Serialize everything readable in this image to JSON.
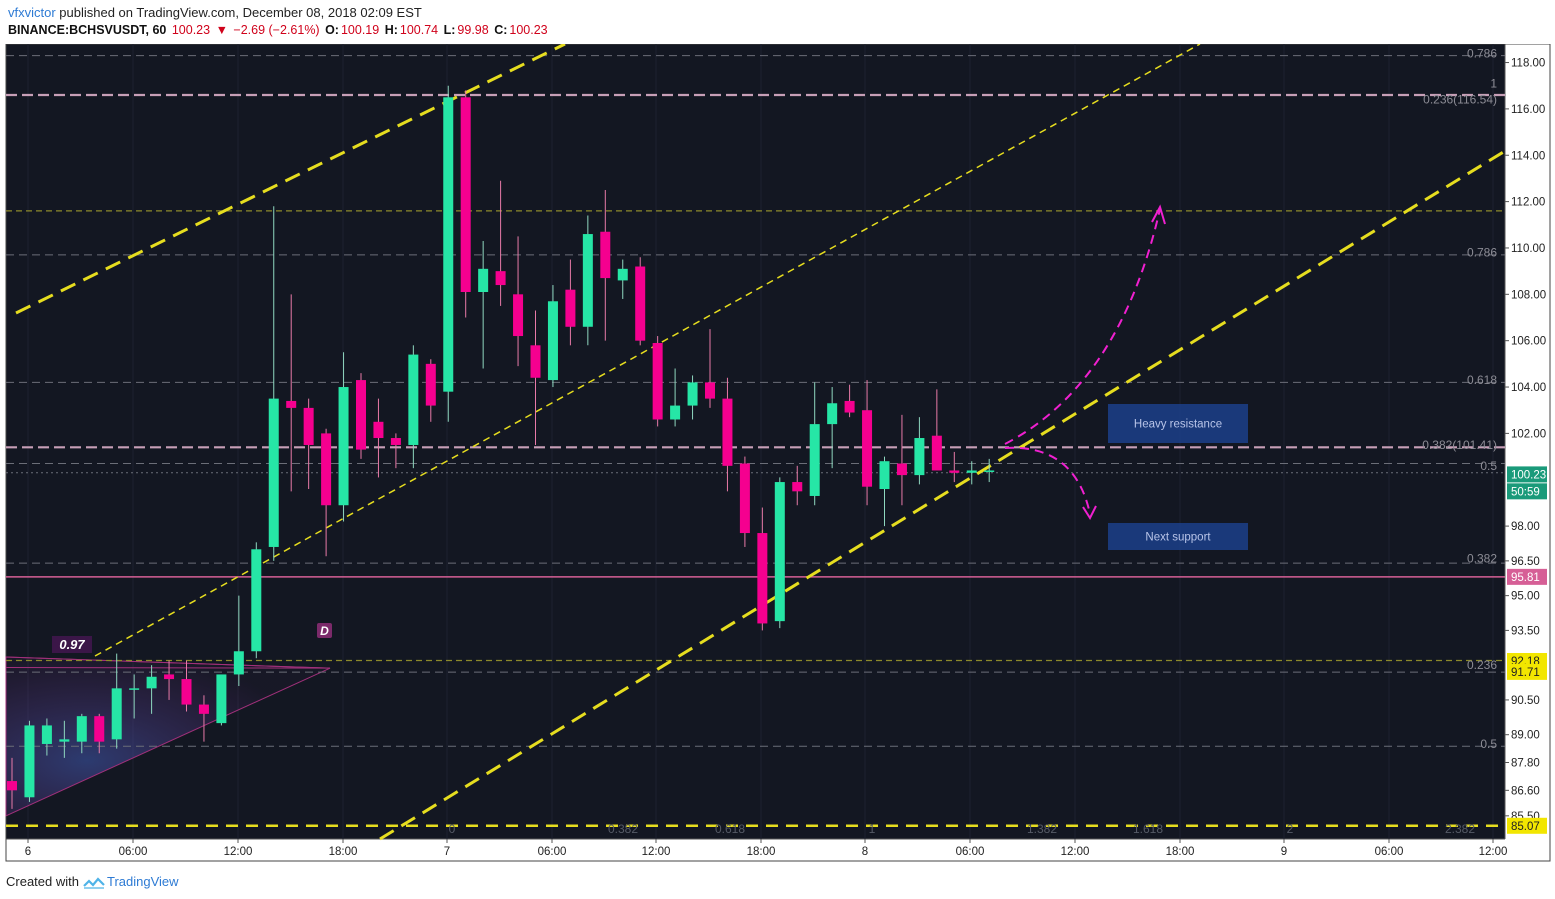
{
  "header": {
    "user": "vfxvictor",
    "published": " published on TradingView.com, December 08, 2018 02:09 EST",
    "symbol": "BINANCE:BCHSVUSDT, 60",
    "last": "100.23",
    "arrow": "▼",
    "change": "−2.69 (−2.61%)",
    "o_label": "O:",
    "o": "100.19",
    "h_label": "H:",
    "h": "100.74",
    "l_label": "L:",
    "l": "99.98",
    "c_label": "C:",
    "c": "100.23"
  },
  "footer": {
    "created_with": "Created with",
    "brand": "TradingView"
  },
  "colors": {
    "background": "#131722",
    "up": "#26e6a6",
    "down": "#f5008f",
    "trend": "#e6dd1f",
    "fib": "#c79fb7",
    "support_line": "#d65f96",
    "label_box": "#1c3f8a",
    "arrow": "#f020d0"
  },
  "chart_data": {
    "type": "candlestick",
    "y_range": [
      84.5,
      118.8
    ],
    "y_ticks": [
      "118.00",
      "116.00",
      "114.00",
      "112.00",
      "110.00",
      "108.00",
      "106.00",
      "104.00",
      "102.00",
      "100.23",
      "98.00",
      "96.50",
      "95.81",
      "95.00",
      "93.50",
      "92.18",
      "91.71",
      "90.50",
      "89.00",
      "87.80",
      "86.60",
      "85.50",
      "85.07"
    ],
    "x_ticks": [
      "6",
      "06:00",
      "12:00",
      "18:00",
      "7",
      "06:00",
      "12:00",
      "18:00",
      "8",
      "06:00",
      "12:00",
      "18:00",
      "9",
      "06:00",
      "12:00"
    ],
    "candles": [
      {
        "o": 87.0,
        "h": 88.0,
        "l": 85.8,
        "c": 86.6
      },
      {
        "o": 86.3,
        "h": 89.6,
        "l": 86.1,
        "c": 89.4
      },
      {
        "o": 88.6,
        "h": 89.7,
        "l": 88.1,
        "c": 89.4
      },
      {
        "o": 88.7,
        "h": 89.6,
        "l": 88.0,
        "c": 88.8
      },
      {
        "o": 88.7,
        "h": 89.9,
        "l": 88.2,
        "c": 89.8
      },
      {
        "o": 89.8,
        "h": 89.9,
        "l": 88.2,
        "c": 88.7
      },
      {
        "o": 88.8,
        "h": 92.5,
        "l": 88.4,
        "c": 91.0
      },
      {
        "o": 91.0,
        "h": 91.6,
        "l": 89.7,
        "c": 91.0
      },
      {
        "o": 91.0,
        "h": 92.0,
        "l": 89.9,
        "c": 91.5
      },
      {
        "o": 91.6,
        "h": 92.2,
        "l": 90.5,
        "c": 91.4
      },
      {
        "o": 91.4,
        "h": 92.2,
        "l": 90.0,
        "c": 90.3
      },
      {
        "o": 90.3,
        "h": 90.7,
        "l": 88.7,
        "c": 89.9
      },
      {
        "o": 89.5,
        "h": 91.5,
        "l": 89.4,
        "c": 91.6
      },
      {
        "o": 91.6,
        "h": 95.0,
        "l": 91.1,
        "c": 92.6
      },
      {
        "o": 92.6,
        "h": 97.3,
        "l": 92.3,
        "c": 97.0
      },
      {
        "o": 97.1,
        "h": 111.8,
        "l": 96.5,
        "c": 103.5
      },
      {
        "o": 103.4,
        "h": 108.0,
        "l": 99.5,
        "c": 103.1
      },
      {
        "o": 103.1,
        "h": 103.5,
        "l": 99.6,
        "c": 101.5
      },
      {
        "o": 102.0,
        "h": 102.2,
        "l": 96.7,
        "c": 98.9
      },
      {
        "o": 98.9,
        "h": 105.5,
        "l": 98.2,
        "c": 104.0
      },
      {
        "o": 104.3,
        "h": 104.6,
        "l": 100.9,
        "c": 101.3
      },
      {
        "o": 102.5,
        "h": 103.5,
        "l": 100.1,
        "c": 101.8
      },
      {
        "o": 101.8,
        "h": 102.0,
        "l": 100.5,
        "c": 101.5
      },
      {
        "o": 101.5,
        "h": 105.8,
        "l": 100.5,
        "c": 105.4
      },
      {
        "o": 105.0,
        "h": 105.2,
        "l": 102.5,
        "c": 103.2
      },
      {
        "o": 103.8,
        "h": 117.0,
        "l": 102.5,
        "c": 116.5
      },
      {
        "o": 116.5,
        "h": 116.8,
        "l": 107.0,
        "c": 108.1
      },
      {
        "o": 108.1,
        "h": 110.3,
        "l": 104.8,
        "c": 109.1
      },
      {
        "o": 109.0,
        "h": 112.9,
        "l": 107.5,
        "c": 108.4
      },
      {
        "o": 108.0,
        "h": 110.5,
        "l": 104.9,
        "c": 106.2
      },
      {
        "o": 105.8,
        "h": 107.3,
        "l": 101.5,
        "c": 104.4
      },
      {
        "o": 104.3,
        "h": 108.4,
        "l": 104.0,
        "c": 107.7
      },
      {
        "o": 108.2,
        "h": 109.5,
        "l": 105.8,
        "c": 106.6
      },
      {
        "o": 106.6,
        "h": 111.4,
        "l": 105.8,
        "c": 110.6
      },
      {
        "o": 110.7,
        "h": 112.5,
        "l": 106.0,
        "c": 108.7
      },
      {
        "o": 108.6,
        "h": 109.5,
        "l": 107.8,
        "c": 109.1
      },
      {
        "o": 109.2,
        "h": 109.6,
        "l": 105.8,
        "c": 106.0
      },
      {
        "o": 105.9,
        "h": 106.2,
        "l": 102.3,
        "c": 102.6
      },
      {
        "o": 102.6,
        "h": 104.8,
        "l": 102.3,
        "c": 103.2
      },
      {
        "o": 103.2,
        "h": 104.5,
        "l": 102.6,
        "c": 104.2
      },
      {
        "o": 104.2,
        "h": 106.5,
        "l": 103.1,
        "c": 103.5
      },
      {
        "o": 103.5,
        "h": 104.4,
        "l": 99.5,
        "c": 100.6
      },
      {
        "o": 100.7,
        "h": 101.0,
        "l": 97.1,
        "c": 97.7
      },
      {
        "o": 97.7,
        "h": 98.8,
        "l": 93.5,
        "c": 93.8
      },
      {
        "o": 93.9,
        "h": 100.1,
        "l": 93.6,
        "c": 99.9
      },
      {
        "o": 99.9,
        "h": 100.6,
        "l": 98.9,
        "c": 99.5
      },
      {
        "o": 99.3,
        "h": 104.2,
        "l": 98.9,
        "c": 102.4
      },
      {
        "o": 102.4,
        "h": 104.0,
        "l": 100.5,
        "c": 103.3
      },
      {
        "o": 103.4,
        "h": 104.1,
        "l": 102.7,
        "c": 102.9
      },
      {
        "o": 103.0,
        "h": 104.3,
        "l": 98.9,
        "c": 99.7
      },
      {
        "o": 99.6,
        "h": 101.0,
        "l": 98.0,
        "c": 100.8
      },
      {
        "o": 100.7,
        "h": 102.8,
        "l": 98.9,
        "c": 100.2
      },
      {
        "o": 100.2,
        "h": 102.7,
        "l": 99.8,
        "c": 101.8
      },
      {
        "o": 101.9,
        "h": 103.9,
        "l": 100.6,
        "c": 100.4
      },
      {
        "o": 100.4,
        "h": 101.2,
        "l": 99.9,
        "c": 100.3
      },
      {
        "o": 100.3,
        "h": 100.8,
        "l": 99.8,
        "c": 100.4
      },
      {
        "o": 100.4,
        "h": 100.9,
        "l": 99.9,
        "c": 100.4
      }
    ],
    "horizontal_levels": [
      {
        "value": 118.3,
        "style": "gray"
      },
      {
        "value": 116.6,
        "style": "fib"
      },
      {
        "value": 111.6,
        "style": "olive"
      },
      {
        "value": 109.7,
        "style": "gray"
      },
      {
        "value": 104.2,
        "style": "gray"
      },
      {
        "value": 101.4,
        "style": "fib"
      },
      {
        "value": 100.7,
        "style": "gray"
      },
      {
        "value": 100.3,
        "style": "gray-light"
      },
      {
        "value": 96.4,
        "style": "gray"
      },
      {
        "value": 95.81,
        "style": "solid"
      },
      {
        "value": 92.2,
        "style": "olive"
      },
      {
        "value": 91.7,
        "style": "gray"
      },
      {
        "value": 88.5,
        "style": "gray"
      },
      {
        "value": 85.07,
        "style": "yellow"
      }
    ],
    "level_labels": [
      "0.786",
      "1",
      "0.236(116.54)",
      "0.786",
      "0.618",
      "0.382(101.41)",
      "0.5",
      "0.382",
      "0.236",
      "0.5"
    ],
    "price_tags": [
      "100.23",
      "50:59",
      "95.81",
      "92.18",
      "91.71",
      "85.07"
    ],
    "time_fib_labels": [
      "0",
      "0.382",
      "0.618",
      "1",
      "1.382",
      "1.618",
      "2",
      "2.382"
    ],
    "pattern_labels": [
      "0.97",
      "D"
    ],
    "annotations": [
      "Heavy resistance",
      "Next support"
    ]
  }
}
